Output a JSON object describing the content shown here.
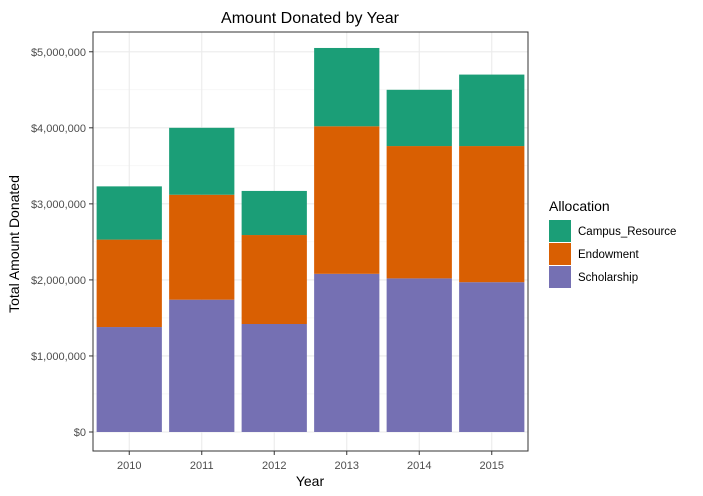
{
  "chart_data": {
    "type": "bar",
    "stacked": true,
    "title": "Amount Donated by Year",
    "xlabel": "Year",
    "ylabel": "Total Amount Donated",
    "categories": [
      "2010",
      "2011",
      "2012",
      "2013",
      "2014",
      "2015"
    ],
    "ylim": [
      0,
      5000000
    ],
    "yticks": [
      0,
      1000000,
      2000000,
      3000000,
      4000000,
      5000000
    ],
    "ytick_labels": [
      "$0",
      "$1,000,000",
      "$2,000,000",
      "$3,000,000",
      "$4,000,000",
      "$5,000,000"
    ],
    "grid": true,
    "legend": {
      "title": "Allocation",
      "placement": "right",
      "entries": [
        "Campus_Resource",
        "Endowment",
        "Scholarship"
      ]
    },
    "series": [
      {
        "name": "Scholarship",
        "color": "#7570B3",
        "values": [
          1380000,
          1740000,
          1420000,
          2080000,
          2020000,
          1970000
        ]
      },
      {
        "name": "Endowment",
        "color": "#D95F02",
        "values": [
          1150000,
          1380000,
          1170000,
          1940000,
          1740000,
          1790000
        ]
      },
      {
        "name": "Campus_Resource",
        "color": "#1B9E77",
        "values": [
          700000,
          880000,
          580000,
          1030000,
          740000,
          940000
        ]
      }
    ]
  }
}
